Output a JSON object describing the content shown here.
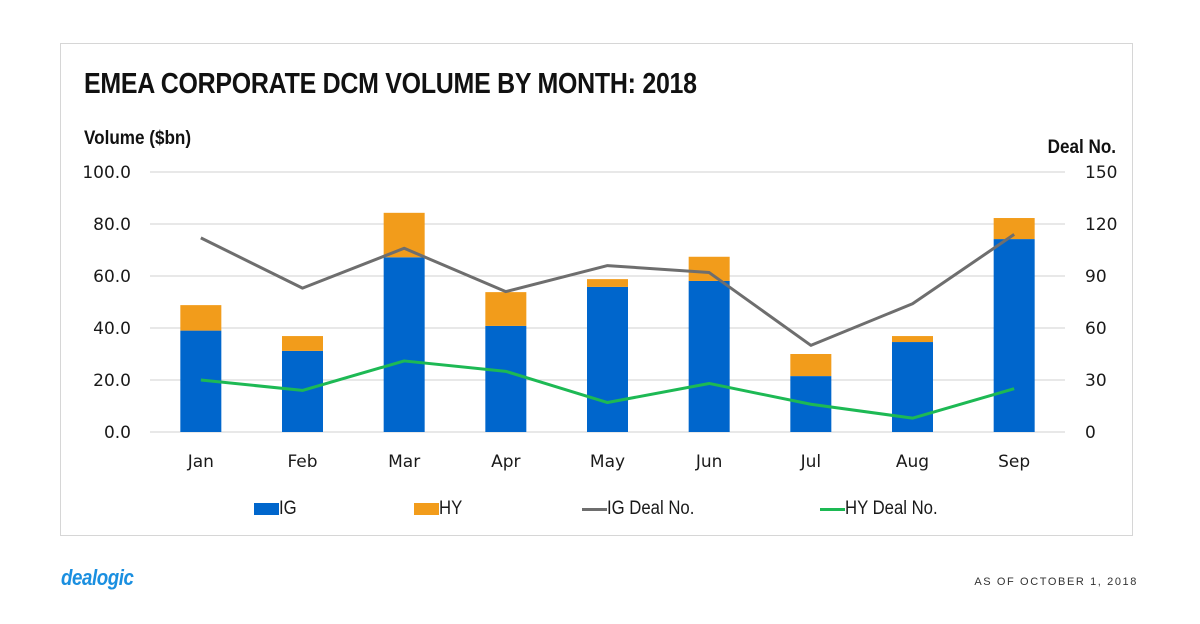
{
  "page": {
    "logo_text": "dealogic",
    "as_of": "AS OF OCTOBER 1, 2018"
  },
  "colors": {
    "ig": "#0066cc",
    "hy": "#f29c1b",
    "ig_deal": "#6e6e6e",
    "hy_deal": "#1db954",
    "grid": "#d9d9d9",
    "logo": "#1a8fe0"
  },
  "chart_data": {
    "type": "bar",
    "subtype": "stacked bar with dual-axis lines",
    "title": "EMEA CORPORATE DCM VOLUME BY MONTH: 2018",
    "xlabel": "",
    "ylabel": "Volume ($bn)",
    "y2label": "Deal No.",
    "categories": [
      "Jan",
      "Feb",
      "Mar",
      "Apr",
      "May",
      "Jun",
      "Jul",
      "Aug",
      "Sep"
    ],
    "ylim": [
      0,
      100
    ],
    "y2lim": [
      0,
      150
    ],
    "yticks": [
      "0.0",
      "20.0",
      "40.0",
      "60.0",
      "80.0",
      "100.0"
    ],
    "y2ticks": [
      "0",
      "30",
      "60",
      "90",
      "120",
      "150"
    ],
    "grid": true,
    "legend_position": "bottom",
    "series": [
      {
        "name": "IG",
        "kind": "bar",
        "axis": "left",
        "stack": "volume",
        "values": [
          39.0,
          31.2,
          67.2,
          40.8,
          55.8,
          58.1,
          21.5,
          34.6,
          74.2
        ]
      },
      {
        "name": "HY",
        "kind": "bar",
        "axis": "left",
        "stack": "volume",
        "values": [
          9.8,
          5.7,
          17.1,
          13.0,
          3.0,
          9.3,
          8.5,
          2.3,
          8.1
        ]
      },
      {
        "name": "IG Deal No.",
        "kind": "line",
        "axis": "right",
        "values": [
          112,
          83,
          106,
          81,
          96,
          92,
          50,
          74,
          114
        ]
      },
      {
        "name": "HY Deal No.",
        "kind": "line",
        "axis": "right",
        "values": [
          30,
          24,
          41,
          35,
          17,
          28,
          16,
          8,
          25
        ]
      }
    ]
  }
}
